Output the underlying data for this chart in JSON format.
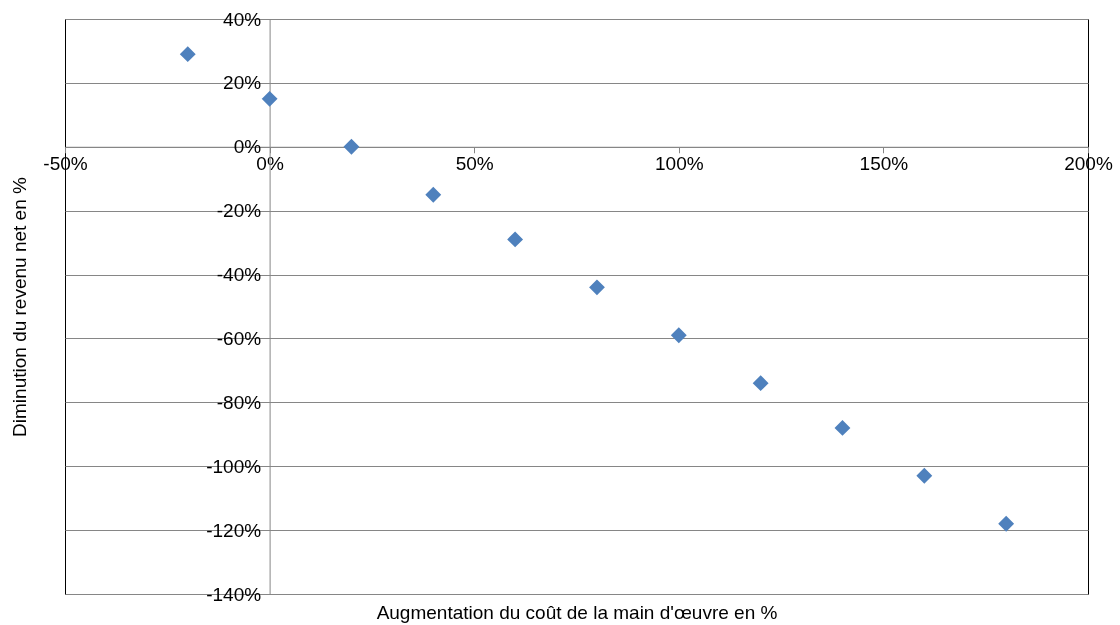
{
  "chart_data": {
    "type": "scatter",
    "xlabel": "Augmentation du coût de la main d'œuvre en  %",
    "ylabel": "Diminution du revenu net en %",
    "x": [
      -20,
      0,
      20,
      40,
      60,
      80,
      100,
      120,
      140,
      160,
      180
    ],
    "series": [
      {
        "color": "#4f81bd",
        "values": [
          29,
          15,
          0,
          -15,
          -29,
          -44,
          -59,
          -74,
          -88,
          -103,
          -118
        ]
      }
    ],
    "xlim": [
      -50,
      200
    ],
    "xticks": [
      {
        "value": -50,
        "label": "-50%"
      },
      {
        "value": 0,
        "label": "0%"
      },
      {
        "value": 50,
        "label": "50%"
      },
      {
        "value": 100,
        "label": "100%"
      },
      {
        "value": 150,
        "label": "150%"
      },
      {
        "value": 200,
        "label": "200%"
      }
    ],
    "ylim": [
      -140,
      40
    ],
    "yticks": [
      {
        "value": -140,
        "label": "-140%"
      },
      {
        "value": -120,
        "label": "-120%"
      },
      {
        "value": -100,
        "label": "-100%"
      },
      {
        "value": -80,
        "label": "-80%"
      },
      {
        "value": -60,
        "label": "-60%"
      },
      {
        "value": -40,
        "label": "-40%"
      },
      {
        "value": -20,
        "label": "-20%"
      },
      {
        "value": 0,
        "label": "0%"
      },
      {
        "value": 20,
        "label": "20%"
      },
      {
        "value": 40,
        "label": "40%"
      }
    ],
    "grid": "y",
    "marker": "diamond"
  }
}
